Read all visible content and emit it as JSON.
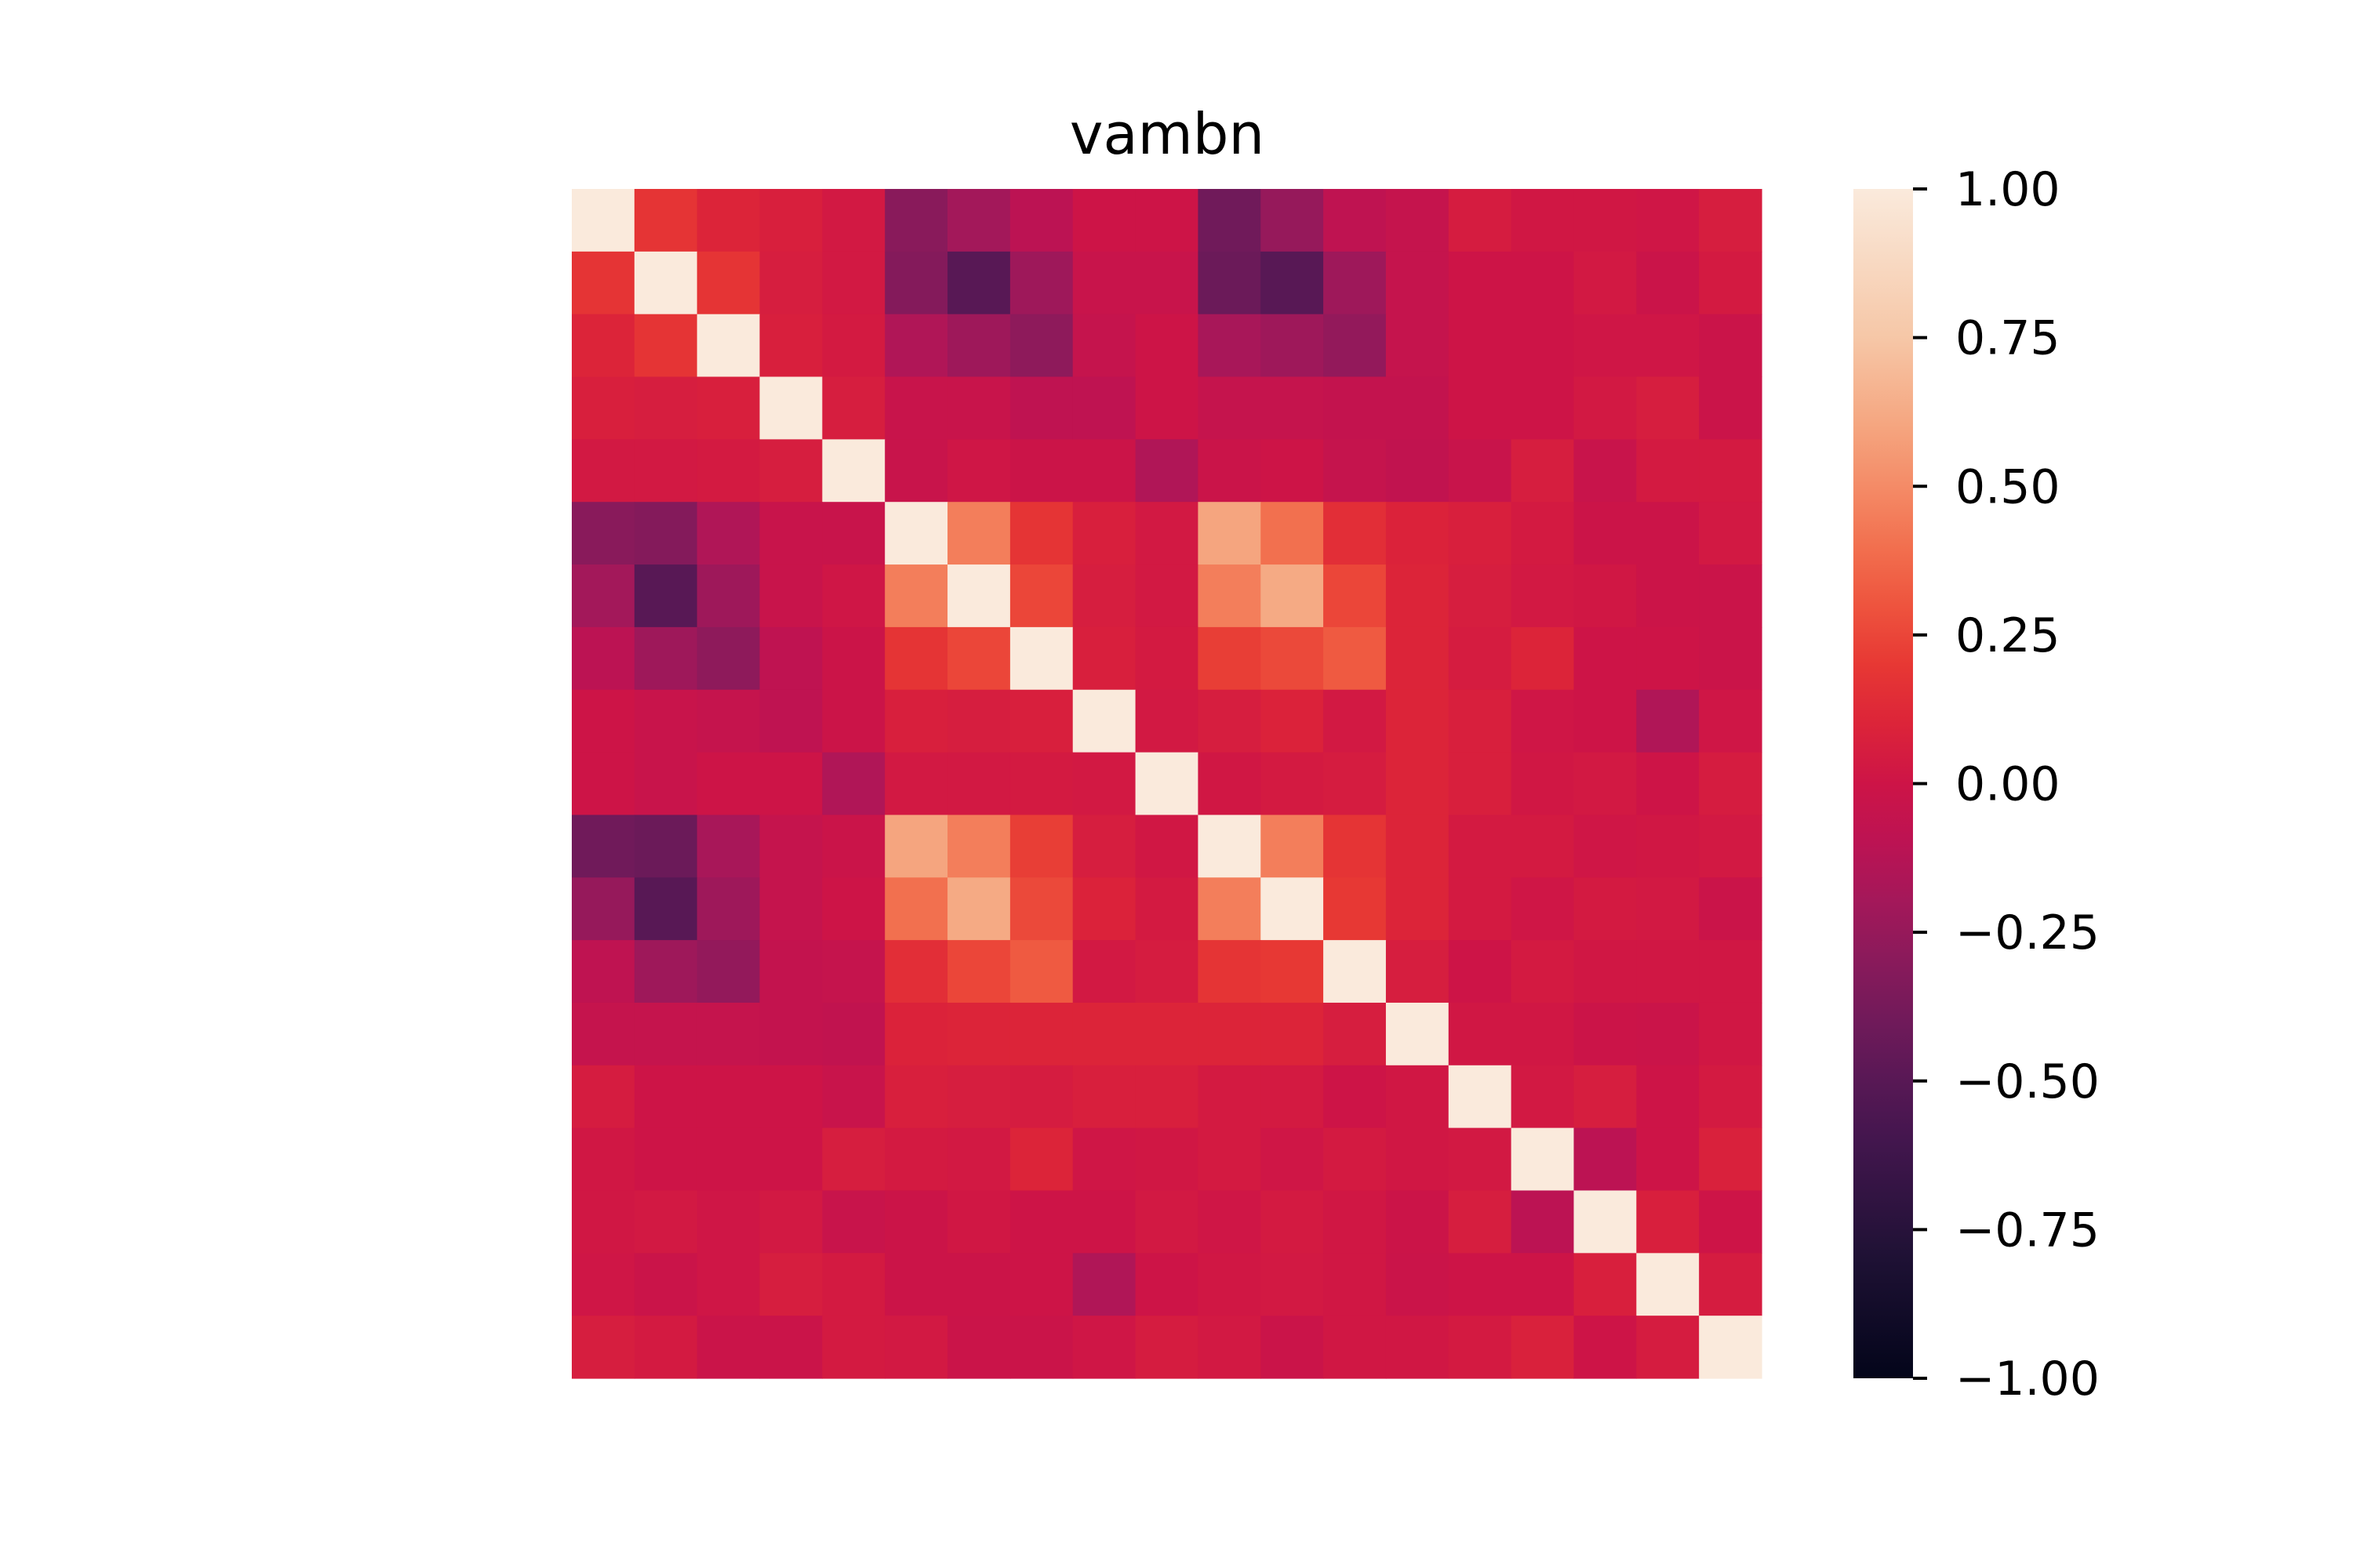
{
  "chart_data": {
    "type": "heatmap",
    "title": "vambn",
    "xlabel": "",
    "ylabel": "",
    "colormap": "rocket",
    "vmin": -1.0,
    "vmax": 1.0,
    "colorbar_ticks": [
      1.0,
      0.75,
      0.5,
      0.25,
      0.0,
      -0.25,
      -0.5,
      -0.75,
      -1.0
    ],
    "colorbar_tick_labels": [
      "1.00",
      "0.75",
      "0.50",
      "0.25",
      "0.00",
      "−0.25",
      "−0.50",
      "−0.75",
      "−1.00"
    ],
    "x_tick_labels": [],
    "y_tick_labels": [],
    "grid": false,
    "matrix": [
      [
        1.0,
        0.18,
        0.1,
        0.07,
        0.03,
        -0.3,
        -0.2,
        -0.1,
        0.0,
        0.0,
        -0.4,
        -0.25,
        -0.08,
        -0.05,
        0.05,
        0.02,
        0.02,
        0.01,
        0.06
      ],
      [
        0.18,
        1.0,
        0.18,
        0.06,
        0.03,
        -0.32,
        -0.5,
        -0.22,
        -0.03,
        -0.03,
        -0.42,
        -0.5,
        -0.22,
        -0.05,
        0.0,
        0.0,
        0.03,
        -0.02,
        0.04
      ],
      [
        0.1,
        0.18,
        1.0,
        0.07,
        0.04,
        -0.15,
        -0.22,
        -0.28,
        -0.05,
        0.0,
        -0.18,
        -0.22,
        -0.26,
        -0.05,
        0.0,
        0.0,
        0.01,
        0.01,
        -0.02
      ],
      [
        0.07,
        0.06,
        0.07,
        1.0,
        0.06,
        -0.03,
        -0.03,
        -0.08,
        -0.08,
        0.0,
        -0.05,
        -0.05,
        -0.06,
        -0.06,
        0.0,
        0.0,
        0.03,
        0.06,
        -0.02
      ],
      [
        0.03,
        0.03,
        0.04,
        0.06,
        1.0,
        -0.03,
        0.01,
        -0.01,
        -0.01,
        -0.15,
        -0.02,
        0.0,
        -0.05,
        -0.07,
        -0.03,
        0.06,
        -0.03,
        0.04,
        0.04
      ],
      [
        -0.3,
        -0.32,
        -0.15,
        -0.03,
        -0.03,
        1.0,
        0.45,
        0.18,
        0.07,
        0.03,
        0.6,
        0.4,
        0.15,
        0.09,
        0.07,
        0.04,
        -0.01,
        -0.01,
        0.03
      ],
      [
        -0.2,
        -0.5,
        -0.22,
        -0.03,
        0.01,
        0.45,
        1.0,
        0.25,
        0.06,
        0.03,
        0.45,
        0.62,
        0.25,
        0.1,
        0.06,
        0.03,
        0.02,
        -0.01,
        -0.02
      ],
      [
        -0.1,
        -0.22,
        -0.28,
        -0.08,
        -0.01,
        0.18,
        0.25,
        1.0,
        0.07,
        0.04,
        0.22,
        0.26,
        0.32,
        0.1,
        0.05,
        0.1,
        0.0,
        0.0,
        -0.02
      ],
      [
        0.0,
        -0.03,
        -0.05,
        -0.08,
        -0.01,
        0.07,
        0.06,
        0.07,
        1.0,
        0.03,
        0.06,
        0.09,
        0.03,
        0.1,
        0.07,
        0.01,
        0.0,
        -0.15,
        0.01
      ],
      [
        0.0,
        -0.03,
        0.0,
        0.0,
        -0.15,
        0.03,
        0.03,
        0.04,
        0.03,
        1.0,
        0.02,
        0.04,
        0.05,
        0.1,
        0.07,
        0.02,
        0.03,
        0.0,
        0.05
      ],
      [
        -0.4,
        -0.42,
        -0.18,
        -0.05,
        -0.02,
        0.6,
        0.45,
        0.22,
        0.06,
        0.02,
        1.0,
        0.45,
        0.18,
        0.1,
        0.04,
        0.04,
        0.01,
        0.02,
        0.03
      ],
      [
        -0.25,
        -0.5,
        -0.22,
        -0.05,
        0.0,
        0.4,
        0.62,
        0.26,
        0.09,
        0.04,
        0.45,
        1.0,
        0.2,
        0.1,
        0.04,
        0.01,
        0.04,
        0.03,
        -0.02
      ],
      [
        -0.08,
        -0.22,
        -0.26,
        -0.06,
        -0.05,
        0.15,
        0.25,
        0.32,
        0.03,
        0.05,
        0.18,
        0.2,
        1.0,
        0.06,
        0.0,
        0.04,
        0.02,
        0.02,
        0.02
      ],
      [
        -0.05,
        -0.05,
        -0.05,
        -0.06,
        -0.07,
        0.09,
        0.1,
        0.1,
        0.1,
        0.1,
        0.1,
        0.1,
        0.06,
        1.0,
        0.02,
        0.02,
        -0.01,
        -0.02,
        0.02
      ],
      [
        0.05,
        0.0,
        0.0,
        0.0,
        -0.03,
        0.07,
        0.06,
        0.05,
        0.07,
        0.07,
        0.04,
        0.04,
        0.0,
        0.02,
        1.0,
        0.03,
        0.06,
        0.0,
        0.04
      ],
      [
        0.02,
        0.0,
        0.0,
        0.0,
        0.06,
        0.04,
        0.03,
        0.1,
        0.01,
        0.02,
        0.04,
        0.01,
        0.04,
        0.02,
        0.03,
        1.0,
        -0.1,
        0.0,
        0.08
      ],
      [
        0.02,
        0.03,
        0.01,
        0.03,
        -0.03,
        -0.01,
        0.02,
        0.0,
        0.0,
        0.03,
        0.01,
        0.04,
        0.02,
        -0.01,
        0.06,
        -0.1,
        1.0,
        0.07,
        0.0
      ],
      [
        0.01,
        -0.02,
        0.01,
        0.06,
        0.04,
        -0.01,
        -0.01,
        0.0,
        -0.15,
        0.0,
        0.02,
        0.03,
        0.02,
        -0.02,
        0.0,
        0.0,
        0.07,
        1.0,
        0.05
      ],
      [
        0.06,
        0.04,
        -0.02,
        -0.02,
        0.04,
        0.03,
        -0.02,
        -0.02,
        0.01,
        0.05,
        0.03,
        -0.02,
        0.02,
        0.02,
        0.04,
        0.08,
        0.0,
        0.05,
        1.0
      ]
    ]
  }
}
